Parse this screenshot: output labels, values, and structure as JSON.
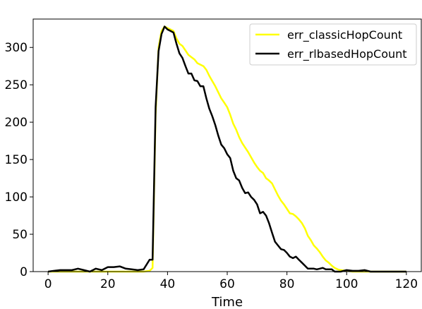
{
  "chart_data": {
    "type": "line",
    "title": "",
    "xlabel": "Time",
    "ylabel": "",
    "xlim": [
      -5,
      125
    ],
    "ylim": [
      0,
      338
    ],
    "xticks": [
      0,
      20,
      40,
      60,
      80,
      100,
      120
    ],
    "yticks": [
      0,
      50,
      100,
      150,
      200,
      250,
      300
    ],
    "xtick_labels": [
      "0",
      "20",
      "40",
      "60",
      "80",
      "100",
      "120"
    ],
    "ytick_labels": [
      "0",
      "50",
      "100",
      "150",
      "200",
      "250",
      "300"
    ],
    "grid": false,
    "legend": "top-right",
    "series": [
      {
        "name": "err_classicHopCount",
        "color": "#ffff00",
        "x": [
          0,
          2,
          4,
          6,
          8,
          10,
          12,
          14,
          16,
          18,
          20,
          22,
          24,
          26,
          28,
          30,
          32,
          34,
          35,
          36,
          37,
          38,
          39,
          40,
          41,
          42,
          43,
          44,
          45,
          46,
          47,
          48,
          49,
          50,
          51,
          52,
          53,
          54,
          55,
          56,
          57,
          58,
          59,
          60,
          61,
          62,
          63,
          64,
          65,
          66,
          67,
          68,
          69,
          70,
          71,
          72,
          73,
          74,
          75,
          76,
          77,
          78,
          79,
          80,
          81,
          82,
          83,
          84,
          85,
          86,
          87,
          88,
          89,
          90,
          91,
          92,
          93,
          94,
          95,
          96,
          97,
          98,
          100,
          102,
          104,
          106,
          108,
          110,
          112,
          114,
          116,
          118,
          120
        ],
        "y": [
          0,
          0,
          0,
          0,
          0,
          0,
          0,
          0,
          0,
          0,
          0,
          0,
          0,
          0,
          0,
          0,
          0,
          1,
          5,
          210,
          300,
          322,
          328,
          326,
          324,
          322,
          312,
          305,
          302,
          296,
          290,
          287,
          284,
          279,
          277,
          275,
          270,
          262,
          255,
          248,
          240,
          232,
          226,
          220,
          210,
          198,
          190,
          180,
          172,
          166,
          160,
          153,
          146,
          140,
          135,
          132,
          125,
          122,
          118,
          110,
          102,
          95,
          90,
          84,
          78,
          77,
          74,
          70,
          65,
          58,
          48,
          42,
          35,
          31,
          26,
          20,
          15,
          12,
          8,
          5,
          3,
          2,
          1,
          0,
          0,
          0,
          0,
          0,
          0,
          0,
          0,
          0,
          0
        ]
      },
      {
        "name": "err_rlbasedHopCount",
        "color": "#000000",
        "x": [
          0,
          2,
          4,
          6,
          8,
          10,
          12,
          14,
          16,
          18,
          20,
          22,
          24,
          26,
          28,
          30,
          32,
          34,
          35,
          36,
          37,
          38,
          39,
          40,
          41,
          42,
          43,
          44,
          45,
          46,
          47,
          48,
          49,
          50,
          51,
          52,
          53,
          54,
          55,
          56,
          57,
          58,
          59,
          60,
          61,
          62,
          63,
          64,
          65,
          66,
          67,
          68,
          69,
          70,
          71,
          72,
          73,
          74,
          75,
          76,
          77,
          78,
          79,
          80,
          81,
          82,
          83,
          84,
          85,
          86,
          87,
          88,
          89,
          90,
          91,
          92,
          93,
          94,
          95,
          96,
          97,
          98,
          100,
          102,
          104,
          106,
          108,
          110,
          112,
          114,
          116,
          118,
          120
        ],
        "y": [
          0,
          1,
          2,
          2,
          2,
          4,
          2,
          0,
          4,
          2,
          6,
          6,
          7,
          4,
          3,
          2,
          3,
          16,
          16,
          220,
          295,
          318,
          328,
          324,
          322,
          320,
          305,
          292,
          286,
          275,
          265,
          265,
          256,
          255,
          248,
          248,
          232,
          218,
          208,
          196,
          182,
          170,
          165,
          157,
          152,
          135,
          125,
          122,
          112,
          105,
          106,
          100,
          96,
          90,
          78,
          80,
          75,
          65,
          52,
          40,
          35,
          30,
          29,
          25,
          20,
          18,
          20,
          16,
          12,
          8,
          4,
          4,
          4,
          3,
          4,
          5,
          3,
          3,
          3,
          0,
          0,
          0,
          2,
          1,
          1,
          2,
          0,
          0,
          0,
          0,
          0,
          0,
          0
        ]
      }
    ]
  }
}
